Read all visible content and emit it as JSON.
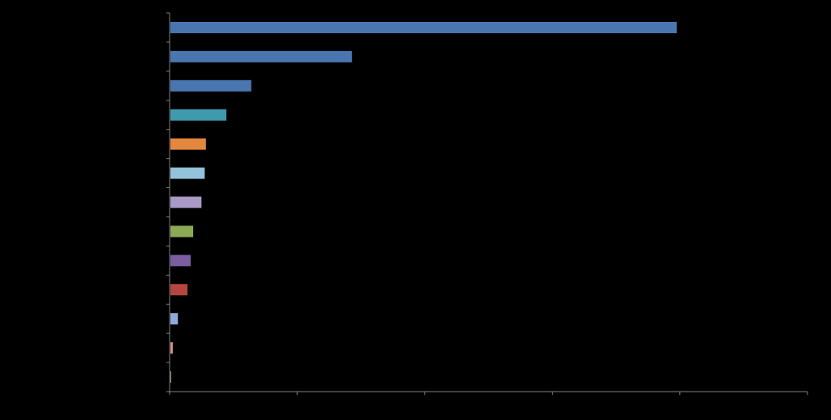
{
  "chart_data": {
    "type": "bar",
    "orientation": "horizontal",
    "title": "",
    "xlabel": "",
    "ylabel": "",
    "xlim": [
      0,
      100
    ],
    "grid": false,
    "legend": "none",
    "background": "#000000",
    "axis_color": "#808080",
    "x_ticks": [
      0,
      20,
      40,
      60,
      80,
      100
    ],
    "categories": [
      "",
      "",
      "",
      "",
      "",
      "",
      "",
      "",
      "",
      "",
      "",
      "",
      ""
    ],
    "values": [
      79.5,
      28.6,
      12.8,
      8.9,
      5.7,
      5.5,
      5.0,
      3.7,
      3.3,
      2.8,
      1.3,
      0.5,
      0.2
    ],
    "colors": [
      "#4A76B0",
      "#4A76B0",
      "#4A76B0",
      "#3F9AAE",
      "#E2873D",
      "#92C3DA",
      "#A99AC5",
      "#8AAA55",
      "#7B5EA0",
      "#B5463F",
      "#8FAAD9",
      "#D98C8C",
      "#A8B070"
    ]
  }
}
